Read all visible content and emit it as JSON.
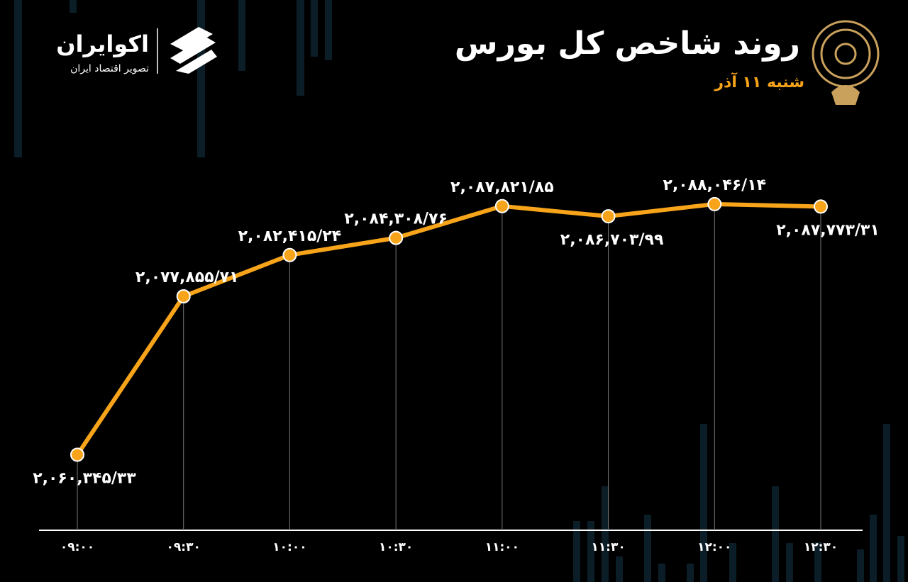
{
  "logo_text": "اکوایران",
  "logo_subtext": "تصویر اقتصاد ایران",
  "chart_data": {
    "type": "line",
    "title": "روند شاخص کل بورس",
    "subtitle": "شنبه ۱۱ آذر",
    "categories": [
      "۰۹:۰۰",
      "۰۹:۳۰",
      "۱۰:۰۰",
      "۱۰:۳۰",
      "۱۱:۰۰",
      "۱۱:۳۰",
      "۱۲:۰۰",
      "۱۲:۳۰"
    ],
    "series": [
      {
        "name": "شاخص کل",
        "color": "#f7a41a",
        "values": [
          2060345.33,
          2077855.71,
          2082415.24,
          2084308.76,
          2087821.85,
          2086703.99,
          2088046.14,
          2087773.31
        ],
        "value_labels": [
          "۲,۰۶۰,۳۴۵/۳۳",
          "۲,۰۷۷,۸۵۵/۷۱",
          "۲,۰۸۲,۴۱۵/۲۴",
          "۲,۰۸۴,۳۰۸/۷۶",
          "۲,۰۸۷,۸۲۱/۸۵",
          "۲,۰۸۶,۷۰۳/۹۹",
          "۲,۰۸۸,۰۴۶/۱۴",
          "۲,۰۸۷,۷۷۳/۳۱"
        ]
      }
    ],
    "ylim": [
      2052000,
      2090000
    ]
  }
}
